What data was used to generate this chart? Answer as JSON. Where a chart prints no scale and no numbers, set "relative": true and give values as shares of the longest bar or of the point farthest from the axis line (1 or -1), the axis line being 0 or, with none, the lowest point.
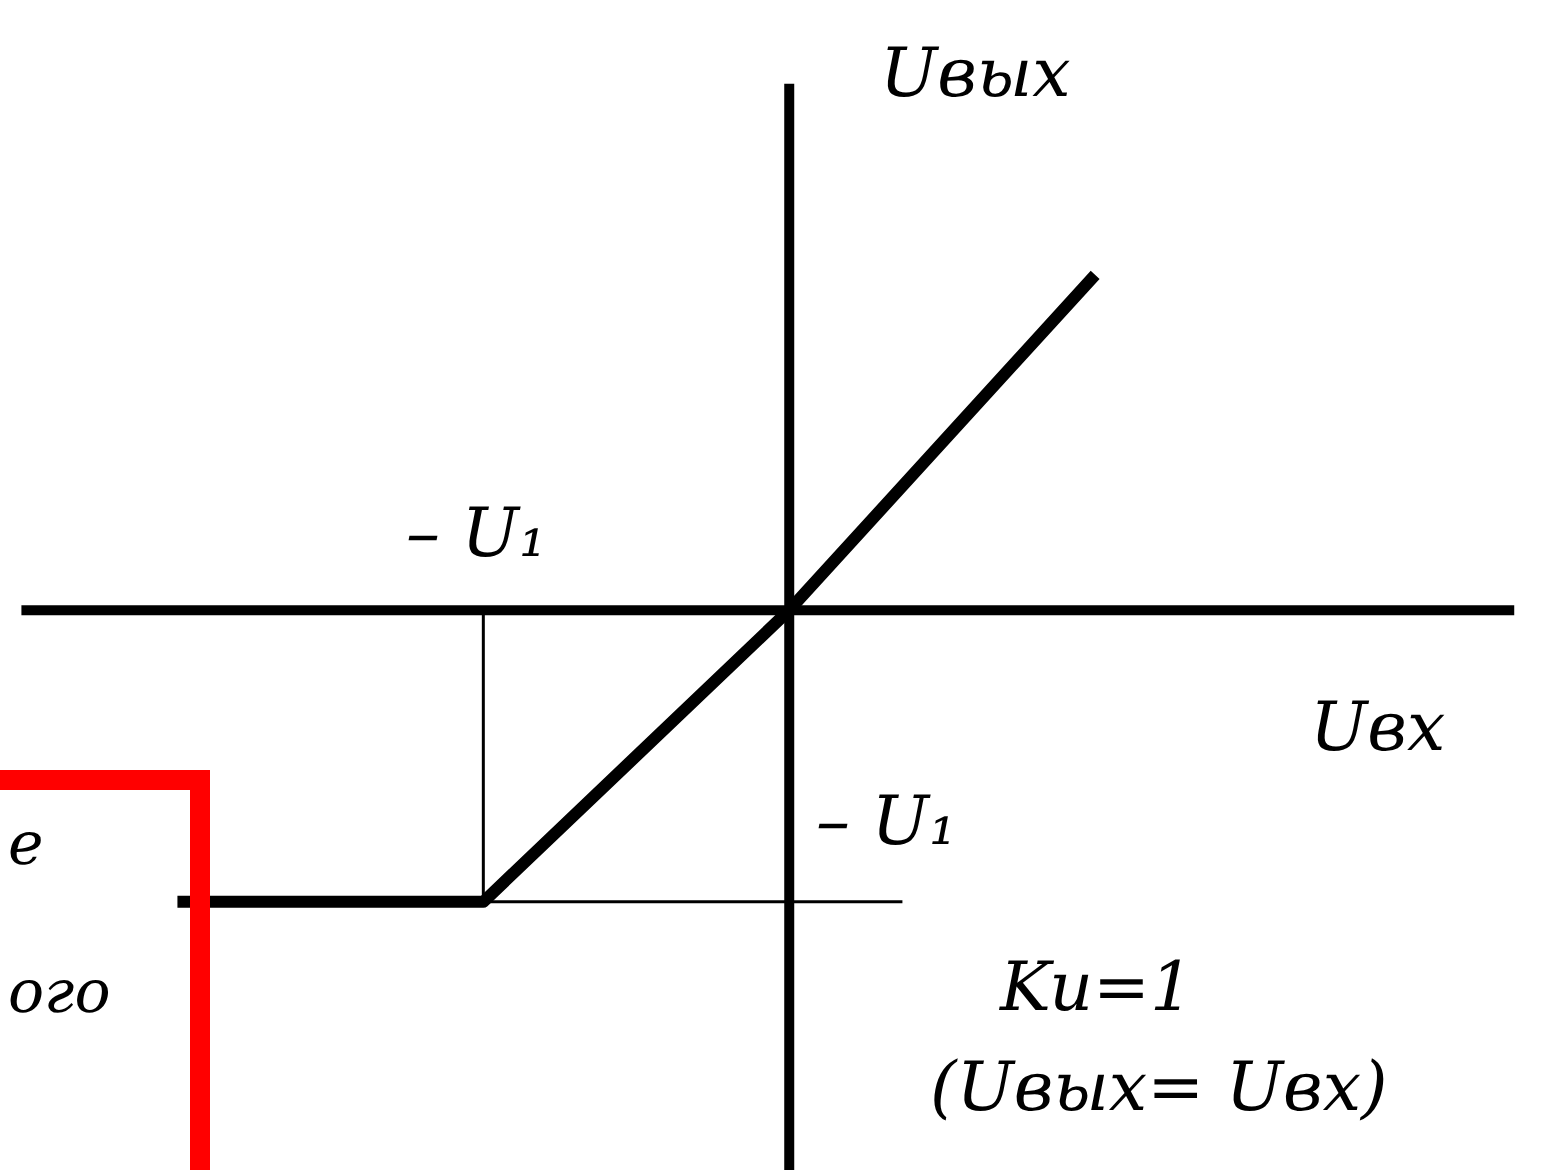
{
  "chart_data": {
    "type": "line",
    "relative": true,
    "xlabel": "Uвх",
    "ylabel": "Uвых",
    "categories": [
      null,
      null,
      null,
      null
    ],
    "series": [
      {
        "color": "#000000",
        "values": [
          -0.87,
          -0.87,
          0,
          1
        ]
      }
    ],
    "annotations": [
      "– U₁",
      "– U₁",
      "Ku=1",
      "(Uвых= Uвх)",
      "е",
      "ого"
    ]
  }
}
